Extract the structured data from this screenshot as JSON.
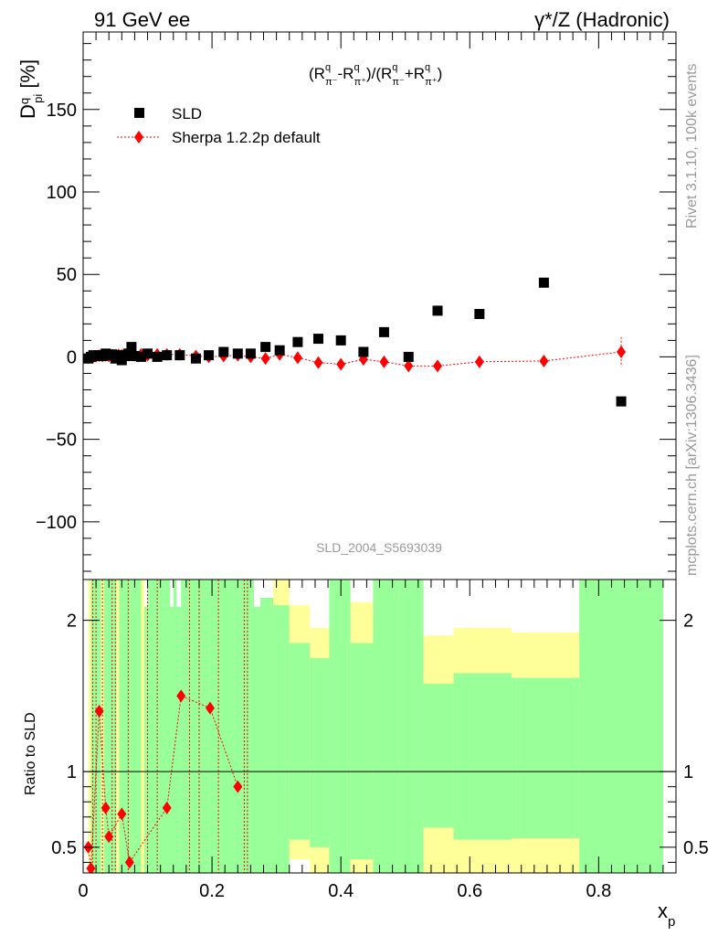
{
  "header": {
    "left_title": "91 GeV ee",
    "right_title": "γ*/Z (Hadronic)"
  },
  "side_labels": {
    "rivet": "Rivet 3.1.10,  100k events",
    "mcplots": "mcplots.cern.ch [arXiv:1306.3436]"
  },
  "analysis_label": "SLD_2004_S5693039",
  "colors": {
    "data": "#000000",
    "mc": "#ff0000",
    "band_green": "#99ff99",
    "band_yellow": "#ffff99"
  },
  "chart_data": [
    {
      "type": "scatter",
      "panel": "main",
      "ylabel": "D^q_pi [%]",
      "formula": "(R^q_π⁻-R^q_π⁺)/(R^q_π⁻+R^q_π⁺)",
      "xlim": [
        0,
        0.92
      ],
      "ylim": [
        -135,
        197
      ],
      "yticks": [
        -100,
        -50,
        0,
        50,
        100,
        150
      ],
      "yticklabels": [
        "−100",
        "−50",
        "0",
        "50",
        "100",
        "150"
      ],
      "legend_position": "top-left",
      "series": [
        {
          "name": "SLD",
          "marker": "square",
          "x": [
            0.008,
            0.012,
            0.016,
            0.02,
            0.025,
            0.03,
            0.035,
            0.04,
            0.045,
            0.05,
            0.055,
            0.06,
            0.065,
            0.07,
            0.075,
            0.08,
            0.09,
            0.1,
            0.115,
            0.13,
            0.15,
            0.175,
            0.195,
            0.218,
            0.24,
            0.26,
            0.283,
            0.305,
            0.333,
            0.365,
            0.4,
            0.435,
            0.467,
            0.505,
            0.55,
            0.615,
            0.715,
            0.835
          ],
          "y": [
            -1,
            0,
            1,
            0.5,
            1,
            0.5,
            2,
            1,
            1.5,
            -1,
            1,
            -2,
            0.5,
            2,
            6,
            0.5,
            0,
            2,
            0,
            1,
            1,
            -1,
            1,
            3,
            2,
            2,
            6,
            4,
            9,
            11,
            10,
            3,
            15,
            0,
            28,
            26,
            45,
            -27
          ]
        },
        {
          "name": "Sherpa 1.2.2p default",
          "marker": "diamond",
          "x": [
            0.008,
            0.012,
            0.016,
            0.02,
            0.025,
            0.03,
            0.035,
            0.04,
            0.045,
            0.05,
            0.055,
            0.06,
            0.065,
            0.07,
            0.075,
            0.08,
            0.09,
            0.1,
            0.115,
            0.13,
            0.15,
            0.175,
            0.195,
            0.218,
            0.24,
            0.26,
            0.283,
            0.305,
            0.333,
            0.365,
            0.4,
            0.435,
            0.467,
            0.505,
            0.55,
            0.615,
            0.715,
            0.835
          ],
          "y": [
            -0.5,
            0,
            0.2,
            0.3,
            0.8,
            0.5,
            1,
            0.5,
            1,
            0.8,
            1.2,
            1,
            0.8,
            1.2,
            1.5,
            1,
            1.5,
            1,
            1.5,
            1.5,
            1.5,
            0.5,
            0,
            0.5,
            1,
            0,
            -1,
            1.5,
            -0.5,
            -3.5,
            -4.5,
            -1.5,
            -3,
            -5.5,
            -5.5,
            -3,
            -2.5,
            3
          ]
        }
      ]
    },
    {
      "type": "line",
      "panel": "ratio",
      "ylabel": "Ratio to SLD",
      "xlabel": "x_p",
      "xlim": [
        0,
        0.92
      ],
      "ylim": [
        0.33,
        2.27
      ],
      "xticks": [
        0,
        0.2,
        0.4,
        0.6,
        0.8
      ],
      "xticklabels": [
        "0",
        "0.2",
        "0.4",
        "0.6",
        "0.8"
      ],
      "yticks": [
        0.5,
        1,
        2
      ],
      "yticklabels": [
        "0.5",
        "1",
        "2"
      ],
      "bands": [
        {
          "x0": 0.295,
          "x1": 0.32,
          "green": [
            0.33,
            2.1
          ],
          "yellow": [
            0.33,
            2.27
          ]
        },
        {
          "x0": 0.32,
          "x1": 0.352,
          "green": [
            0.55,
            1.85
          ],
          "yellow": [
            0.42,
            2.1
          ]
        },
        {
          "x0": 0.352,
          "x1": 0.382,
          "green": [
            0.5,
            1.75
          ],
          "yellow": [
            0.33,
            1.95
          ]
        },
        {
          "x0": 0.382,
          "x1": 0.415,
          "green": [
            0.33,
            2.27
          ],
          "yellow": [
            0.33,
            2.27
          ]
        },
        {
          "x0": 0.415,
          "x1": 0.45,
          "green": [
            0.42,
            1.85
          ],
          "yellow": [
            0.33,
            2.12
          ]
        },
        {
          "x0": 0.45,
          "x1": 0.49,
          "green": [
            0.33,
            2.27
          ],
          "yellow": [
            0.33,
            2.27
          ]
        },
        {
          "x0": 0.49,
          "x1": 0.528,
          "green": [
            0.33,
            2.27
          ],
          "yellow": [
            0.33,
            2.27
          ]
        },
        {
          "x0": 0.528,
          "x1": 0.575,
          "green": [
            0.63,
            1.58
          ],
          "yellow": [
            0.33,
            1.9
          ]
        },
        {
          "x0": 0.575,
          "x1": 0.665,
          "green": [
            0.55,
            1.65
          ],
          "yellow": [
            0.33,
            1.95
          ]
        },
        {
          "x0": 0.665,
          "x1": 0.77,
          "green": [
            0.56,
            1.62
          ],
          "yellow": [
            0.33,
            1.92
          ]
        },
        {
          "x0": 0.77,
          "x1": 0.9,
          "green": [
            0.33,
            2.27
          ],
          "yellow": [
            0.33,
            2.27
          ]
        }
      ],
      "ratio_points": {
        "x": [
          0.008,
          0.012,
          0.025,
          0.035,
          0.04,
          0.06,
          0.072,
          0.13,
          0.152,
          0.197,
          0.24
        ],
        "y": [
          0.5,
          0.36,
          1.4,
          0.76,
          0.57,
          0.72,
          0.4,
          0.76,
          1.5,
          1.42,
          0.9
        ]
      }
    }
  ]
}
